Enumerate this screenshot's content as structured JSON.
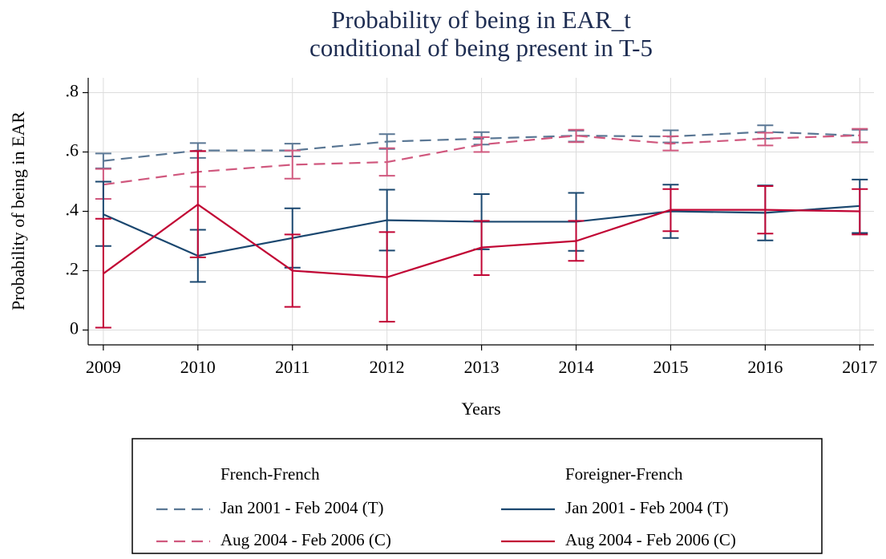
{
  "chart_data": {
    "type": "line",
    "title": [
      "Probability of being in EAR_t",
      "conditional of being present in T-5"
    ],
    "x_label": "Years",
    "y_label": "Probability of being in EAR",
    "x": [
      2009,
      2010,
      2011,
      2012,
      2013,
      2014,
      2015,
      2016,
      2017
    ],
    "xlim": [
      2008.84,
      2017.15
    ],
    "xticks": [
      2009,
      2010,
      2011,
      2012,
      2013,
      2014,
      2015,
      2016,
      2017
    ],
    "ylim": [
      -0.05,
      0.85
    ],
    "yticks": [
      {
        "value": 0,
        "label": "0"
      },
      {
        "value": 0.2,
        "label": ".2"
      },
      {
        "value": 0.4,
        "label": ".4"
      },
      {
        "value": 0.6,
        "label": ".6"
      },
      {
        "value": 0.8,
        "label": ".8"
      }
    ],
    "grid": true,
    "legend_titles": [
      "French-French",
      "Foreigner-French"
    ],
    "series": [
      {
        "name": "Jan 2001 - Feb 2004 (T)",
        "color": "#5a7794",
        "dashed": true,
        "values": [
          0.57,
          0.605,
          0.605,
          0.635,
          0.645,
          0.655,
          0.652,
          0.668,
          0.655
        ],
        "lower": [
          0.545,
          0.58,
          0.585,
          0.61,
          0.625,
          0.635,
          0.632,
          0.645,
          0.633
        ],
        "upper": [
          0.595,
          0.63,
          0.628,
          0.66,
          0.667,
          0.672,
          0.673,
          0.69,
          0.675
        ]
      },
      {
        "name": "Aug 2004 - Feb 2006 (C)",
        "color": "#d0587e",
        "dashed": true,
        "values": [
          0.49,
          0.533,
          0.557,
          0.566,
          0.625,
          0.655,
          0.628,
          0.645,
          0.656
        ],
        "lower": [
          0.442,
          0.483,
          0.51,
          0.52,
          0.6,
          0.633,
          0.605,
          0.622,
          0.632
        ],
        "upper": [
          0.543,
          0.603,
          0.605,
          0.613,
          0.65,
          0.675,
          0.653,
          0.665,
          0.678
        ]
      },
      {
        "name": "Jan 2001 - Feb 2004 (T)",
        "color": "#1a476f",
        "dashed": false,
        "values": [
          0.39,
          0.25,
          0.31,
          0.37,
          0.365,
          0.365,
          0.4,
          0.395,
          0.418
        ],
        "lower": [
          0.283,
          0.162,
          0.21,
          0.268,
          0.272,
          0.267,
          0.31,
          0.302,
          0.327
        ],
        "upper": [
          0.5,
          0.338,
          0.41,
          0.473,
          0.458,
          0.462,
          0.49,
          0.487,
          0.507
        ]
      },
      {
        "name": "Aug 2004 - Feb 2006 (C)",
        "color": "#c10534",
        "dashed": false,
        "values": [
          0.19,
          0.423,
          0.2,
          0.178,
          0.278,
          0.3,
          0.405,
          0.405,
          0.4
        ],
        "lower": [
          0.008,
          0.245,
          0.078,
          0.028,
          0.185,
          0.233,
          0.333,
          0.325,
          0.322
        ],
        "upper": [
          0.375,
          0.603,
          0.322,
          0.33,
          0.368,
          0.368,
          0.475,
          0.485,
          0.475
        ]
      }
    ]
  }
}
